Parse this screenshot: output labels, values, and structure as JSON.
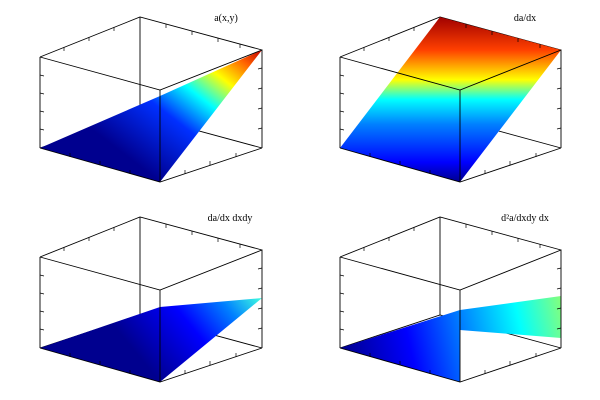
{
  "chart_data": [
    {
      "type": "surface",
      "title": "a(x,y)",
      "surface": "a",
      "colormap": "jet",
      "grid": false,
      "xlabel": "",
      "ylabel": "",
      "zlabel": "",
      "color_range": [
        0,
        1
      ]
    },
    {
      "type": "surface",
      "title": "da/dx",
      "surface": "dadx",
      "colormap": "jet",
      "grid": false,
      "xlabel": "",
      "ylabel": "",
      "zlabel": "",
      "color_range": [
        0,
        1
      ]
    },
    {
      "type": "surface",
      "title": "da/dx dxdy",
      "surface": "dadx_dxdy",
      "colormap": "jet",
      "grid": false,
      "xlabel": "",
      "ylabel": "",
      "zlabel": "",
      "color_range": [
        0,
        1
      ]
    },
    {
      "type": "surface",
      "title": "d²a/dxdy dx",
      "surface": "d2a_dxdy_dx",
      "colormap": "jet",
      "grid": false,
      "xlabel": "",
      "ylabel": "",
      "zlabel": "",
      "color_range": [
        0,
        1
      ]
    }
  ],
  "colors": {
    "background": "#ffffff",
    "axes": "#000000"
  }
}
